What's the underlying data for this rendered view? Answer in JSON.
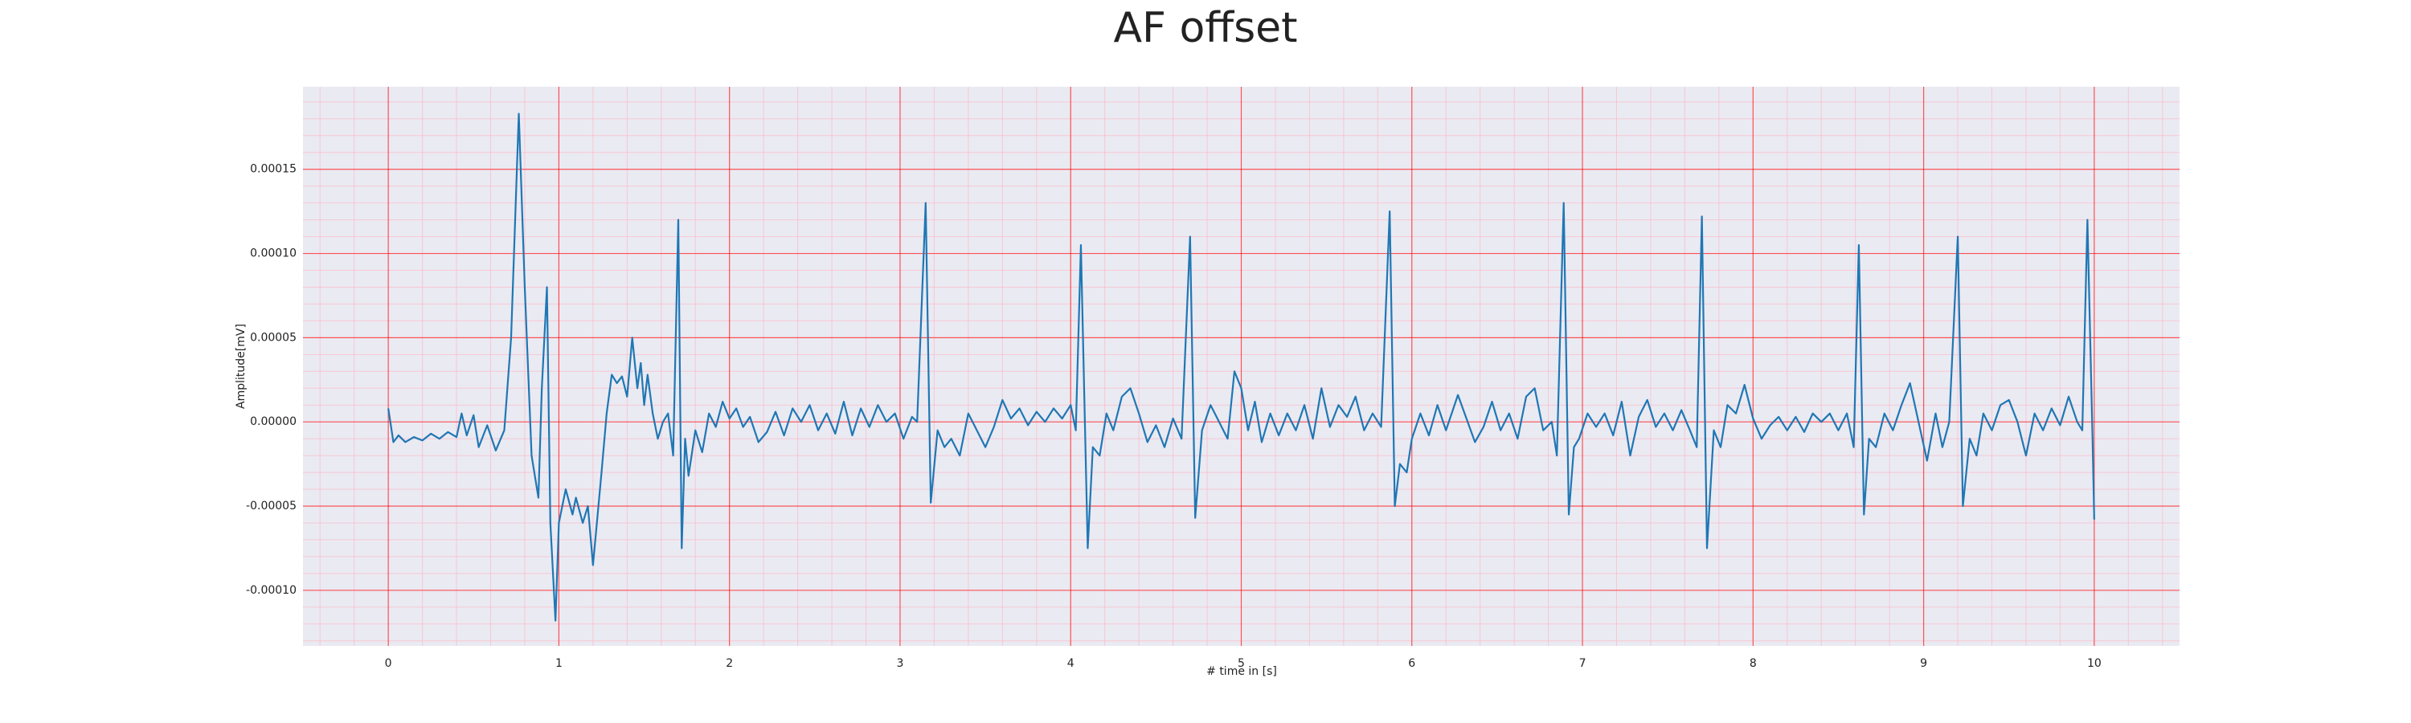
{
  "chart_data": {
    "type": "line",
    "title": "AF offset",
    "xlabel": "# time in [s]",
    "ylabel": "Amplitude[mV]",
    "background": "#eaeaf2",
    "grid": true,
    "minor_grid": true,
    "grid_color": "#ff0000",
    "minor_grid_color": "#ffb0c0",
    "xlim": [
      -0.5,
      10.5
    ],
    "ylim": [
      -0.000133,
      0.000199
    ],
    "xticks": [
      0,
      1,
      2,
      3,
      4,
      5,
      6,
      7,
      8,
      9,
      10
    ],
    "yticks": [
      {
        "value": -0.0001,
        "label": "-0.00010"
      },
      {
        "value": -5e-05,
        "label": "-0.00005"
      },
      {
        "value": 0,
        "label": "0.00000"
      },
      {
        "value": 5e-05,
        "label": "0.00005"
      },
      {
        "value": 0.0001,
        "label": "0.00010"
      },
      {
        "value": 0.00015,
        "label": "0.00015"
      }
    ],
    "series": [
      {
        "color": "#1f77b4",
        "x": [
          0,
          0.03,
          0.06,
          0.1,
          0.15,
          0.2,
          0.25,
          0.3,
          0.35,
          0.4,
          0.43,
          0.46,
          0.5,
          0.53,
          0.58,
          0.63,
          0.68,
          0.72,
          0.765,
          0.8,
          0.84,
          0.88,
          0.9,
          0.93,
          0.95,
          0.98,
          1.0,
          1.04,
          1.08,
          1.1,
          1.14,
          1.17,
          1.2,
          1.25,
          1.28,
          1.31,
          1.34,
          1.37,
          1.4,
          1.43,
          1.46,
          1.48,
          1.5,
          1.52,
          1.55,
          1.58,
          1.61,
          1.64,
          1.67,
          1.7,
          1.72,
          1.74,
          1.76,
          1.8,
          1.84,
          1.88,
          1.92,
          1.96,
          2.0,
          2.04,
          2.08,
          2.12,
          2.17,
          2.22,
          2.27,
          2.32,
          2.37,
          2.42,
          2.47,
          2.52,
          2.57,
          2.62,
          2.67,
          2.72,
          2.77,
          2.82,
          2.87,
          2.92,
          2.97,
          3.02,
          3.07,
          3.1,
          3.15,
          3.18,
          3.22,
          3.26,
          3.3,
          3.35,
          3.4,
          3.45,
          3.5,
          3.55,
          3.6,
          3.65,
          3.7,
          3.75,
          3.8,
          3.85,
          3.9,
          3.95,
          4.0,
          4.03,
          4.06,
          4.1,
          4.13,
          4.17,
          4.21,
          4.25,
          4.3,
          4.35,
          4.4,
          4.45,
          4.5,
          4.55,
          4.6,
          4.65,
          4.7,
          4.73,
          4.77,
          4.82,
          4.87,
          4.92,
          4.96,
          5.0,
          5.04,
          5.08,
          5.12,
          5.17,
          5.22,
          5.27,
          5.32,
          5.37,
          5.42,
          5.47,
          5.52,
          5.57,
          5.62,
          5.67,
          5.72,
          5.77,
          5.82,
          5.87,
          5.9,
          5.93,
          5.97,
          6.0,
          6.05,
          6.1,
          6.15,
          6.2,
          6.27,
          6.32,
          6.37,
          6.42,
          6.47,
          6.52,
          6.57,
          6.62,
          6.67,
          6.72,
          6.77,
          6.82,
          6.85,
          6.89,
          6.92,
          6.95,
          6.98,
          7.03,
          7.08,
          7.13,
          7.18,
          7.23,
          7.28,
          7.33,
          7.38,
          7.43,
          7.48,
          7.53,
          7.58,
          7.63,
          7.67,
          7.7,
          7.73,
          7.77,
          7.81,
          7.85,
          7.9,
          7.95,
          8.0,
          8.05,
          8.1,
          8.15,
          8.2,
          8.25,
          8.3,
          8.35,
          8.4,
          8.45,
          8.5,
          8.55,
          8.59,
          8.62,
          8.65,
          8.68,
          8.72,
          8.77,
          8.82,
          8.87,
          8.92,
          8.97,
          9.02,
          9.07,
          9.11,
          9.15,
          9.2,
          9.23,
          9.27,
          9.31,
          9.35,
          9.4,
          9.45,
          9.5,
          9.55,
          9.6,
          9.65,
          9.7,
          9.75,
          9.8,
          9.85,
          9.9,
          9.93,
          9.96,
          9.99,
          10.0
        ],
        "values": [
          8e-06,
          -1.2e-05,
          -8e-06,
          -1.2e-05,
          -9e-06,
          -1.1e-05,
          -7e-06,
          -1e-05,
          -6e-06,
          -9e-06,
          5e-06,
          -8e-06,
          4e-06,
          -1.5e-05,
          -2e-06,
          -1.7e-05,
          -5e-06,
          5e-05,
          0.000183,
          8e-05,
          -2e-05,
          -4.5e-05,
          2e-05,
          8e-05,
          -6e-05,
          -0.000118,
          -6e-05,
          -4e-05,
          -5.5e-05,
          -4.5e-05,
          -6e-05,
          -5e-05,
          -8.5e-05,
          -3e-05,
          5e-06,
          2.8e-05,
          2.3e-05,
          2.7e-05,
          1.5e-05,
          5e-05,
          2e-05,
          3.5e-05,
          1e-05,
          2.8e-05,
          5e-06,
          -1e-05,
          0,
          5e-06,
          -2e-05,
          0.00012,
          -7.5e-05,
          -1e-05,
          -3.2e-05,
          -5e-06,
          -1.8e-05,
          5e-06,
          -3e-06,
          1.2e-05,
          2e-06,
          8e-06,
          -3e-06,
          3e-06,
          -1.2e-05,
          -6e-06,
          6e-06,
          -8e-06,
          8e-06,
          0,
          1e-05,
          -5e-06,
          5e-06,
          -7e-06,
          1.2e-05,
          -8e-06,
          8e-06,
          -3e-06,
          1e-05,
          0,
          5e-06,
          -1e-05,
          3e-06,
          0,
          0.00013,
          -4.8e-05,
          -5e-06,
          -1.5e-05,
          -1e-05,
          -2e-05,
          5e-06,
          -5e-06,
          -1.5e-05,
          -3e-06,
          1.3e-05,
          2e-06,
          8e-06,
          -2e-06,
          6e-06,
          0,
          8e-06,
          2e-06,
          1e-05,
          -5e-06,
          0.000105,
          -7.5e-05,
          -1.5e-05,
          -2e-05,
          5e-06,
          -5e-06,
          1.5e-05,
          2e-05,
          5e-06,
          -1.2e-05,
          -2e-06,
          -1.5e-05,
          2e-06,
          -1e-05,
          0.00011,
          -5.7e-05,
          -5e-06,
          1e-05,
          0,
          -1e-05,
          3e-05,
          2e-05,
          -5e-06,
          1.2e-05,
          -1.2e-05,
          5e-06,
          -8e-06,
          5e-06,
          -5e-06,
          1e-05,
          -1e-05,
          2e-05,
          -3e-06,
          1e-05,
          3e-06,
          1.5e-05,
          -5e-06,
          5e-06,
          -3e-06,
          0.000125,
          -5e-05,
          -2.5e-05,
          -3e-05,
          -1e-05,
          5e-06,
          -8e-06,
          1e-05,
          -5e-06,
          1.6e-05,
          2e-06,
          -1.2e-05,
          -3e-06,
          1.2e-05,
          -5e-06,
          5e-06,
          -1e-05,
          1.5e-05,
          2e-05,
          -5e-06,
          0,
          -2e-05,
          0.00013,
          -5.5e-05,
          -1.5e-05,
          -1e-05,
          5e-06,
          -3e-06,
          5e-06,
          -8e-06,
          1.2e-05,
          -2e-05,
          3e-06,
          1.3e-05,
          -3e-06,
          5e-06,
          -5e-06,
          7e-06,
          -5e-06,
          -1.5e-05,
          0.000122,
          -7.5e-05,
          -5e-06,
          -1.5e-05,
          1e-05,
          5e-06,
          2.2e-05,
          2e-06,
          -1e-05,
          -2e-06,
          3e-06,
          -5e-06,
          3e-06,
          -6e-06,
          5e-06,
          0,
          5e-06,
          -5e-06,
          5e-06,
          -1.5e-05,
          0.000105,
          -5.5e-05,
          -1e-05,
          -1.5e-05,
          5e-06,
          -5e-06,
          1e-05,
          2.3e-05,
          0,
          -2.3e-05,
          5e-06,
          -1.5e-05,
          0,
          0.00011,
          -5e-05,
          -1e-05,
          -2e-05,
          5e-06,
          -5e-06,
          1e-05,
          1.3e-05,
          0,
          -2e-05,
          5e-06,
          -5e-06,
          8e-06,
          -2e-06,
          1.5e-05,
          0,
          -5e-06,
          0.00012,
          -1e-05,
          -5.8e-05
        ]
      }
    ]
  }
}
